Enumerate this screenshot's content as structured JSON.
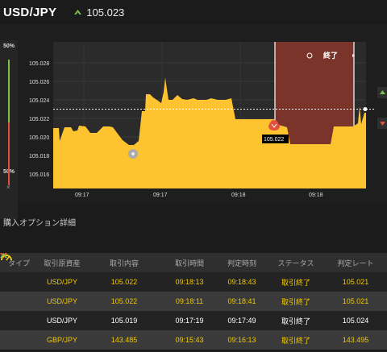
{
  "header": {
    "pair": "USD/JPY",
    "price": "105.023"
  },
  "chart_data": {
    "type": "area",
    "y_ticks": [
      "105.028",
      "105.026",
      "105.024",
      "105.022",
      "105.020",
      "105.018",
      "105.016"
    ],
    "x_ticks": [
      "09:17",
      "09:17",
      "09:18",
      "09:18"
    ],
    "current_price": 105.023,
    "entry_marker_value": "105.022",
    "expiry_label": "終了",
    "left_gauge_top": "50%",
    "left_gauge_bottom": "50%",
    "left_close": "×",
    "colors": {
      "area": "#fdc430",
      "expiry_zone": "#7a3429",
      "up": "#7cc24a",
      "down": "#e0503c"
    }
  },
  "section_title": "購入オプション詳細",
  "table": {
    "headers": [
      "タイプ",
      "取引原資産",
      "取引内容",
      "取引時間",
      "判定時刻",
      "ステータス",
      "判定レート"
    ],
    "rows": [
      {
        "asset": "USD/JPY",
        "dir": "down",
        "rate": "105.022",
        "time": "09:18:13",
        "judge": "09:18:43",
        "status": "取引終了",
        "result": "105.021",
        "highlight": true
      },
      {
        "asset": "USD/JPY",
        "dir": "down",
        "rate": "105.022",
        "time": "09:18:11",
        "judge": "09:18:41",
        "status": "取引終了",
        "result": "105.021",
        "highlight": true
      },
      {
        "asset": "USD/JPY",
        "dir": "down",
        "rate": "105.019",
        "time": "09:17:19",
        "judge": "09:17:49",
        "status": "取引終了",
        "result": "105.024",
        "highlight": false
      },
      {
        "asset": "GBP/JPY",
        "dir": "up",
        "rate": "143.485",
        "time": "09:15:43",
        "judge": "09:16:13",
        "status": "取引終了",
        "result": "143.495",
        "highlight": true
      }
    ]
  }
}
